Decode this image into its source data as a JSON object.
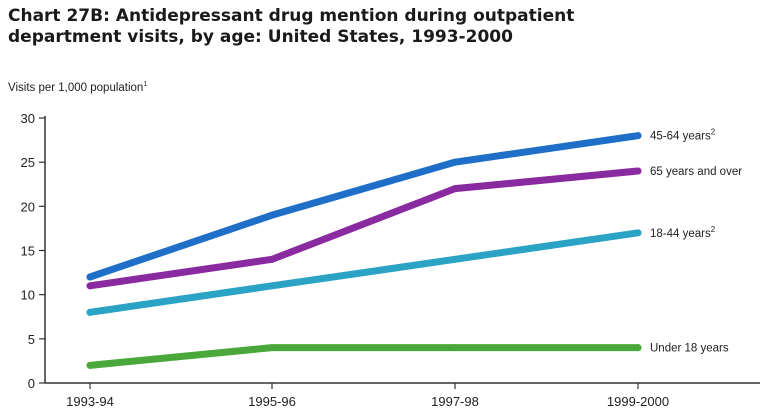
{
  "chart_data": {
    "type": "line",
    "title_line1": "Chart 27B: Antidepressant drug mention during outpatient",
    "title_line2": "department visits, by age:  United States, 1993-2000",
    "ylabel": "Visits per 1,000 population",
    "ylabel_footnote": "1",
    "xlabel": "",
    "categories": [
      "1993-94",
      "1995-96",
      "1997-98",
      "1999-2000"
    ],
    "ylim": [
      0,
      30
    ],
    "yticks": [
      "0",
      "5",
      "10",
      "15",
      "20",
      "25",
      "30"
    ],
    "grid": false,
    "legend": "inline labels at right end of lines",
    "series": [
      {
        "name": "45-64 years",
        "footnote": "2",
        "color": "#1f6fc9",
        "values": [
          12,
          19,
          25,
          28
        ]
      },
      {
        "name": "65 years and over",
        "footnote": "",
        "color": "#8a2aa0",
        "values": [
          11,
          14,
          22,
          24
        ]
      },
      {
        "name": "18-44 years",
        "footnote": "2",
        "color": "#2aa3c4",
        "values": [
          8,
          11,
          14,
          17
        ]
      },
      {
        "name": "Under 18 years",
        "footnote": "",
        "color": "#4aa83a",
        "values": [
          2,
          4,
          4,
          4
        ]
      }
    ]
  }
}
